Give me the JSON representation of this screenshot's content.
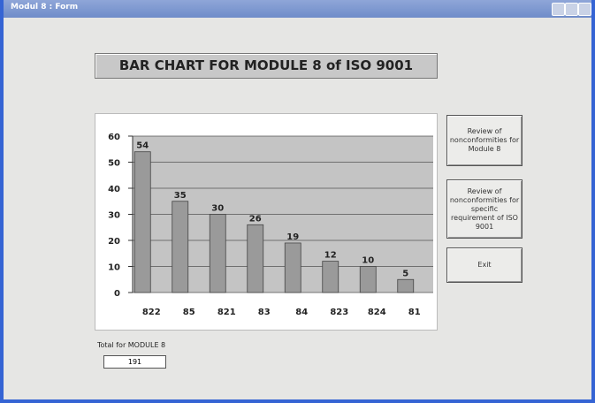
{
  "window": {
    "title": "Modul 8 : Form"
  },
  "heading": "BAR CHART FOR MODULE 8 of ISO 9001",
  "chart_data": {
    "type": "bar",
    "categories": [
      "822",
      "85",
      "821",
      "83",
      "84",
      "823",
      "824",
      "81"
    ],
    "values": [
      54,
      35,
      30,
      26,
      19,
      12,
      10,
      5
    ],
    "color": "#9a9a9a",
    "ylim": [
      0,
      60
    ],
    "yticks": [
      0,
      10,
      20,
      30,
      40,
      50,
      60
    ],
    "grid": true
  },
  "buttons": [
    "Review of nonconformities for Module 8",
    "Review of nonconformities for specific requirement of ISO 9001",
    "Exit"
  ],
  "total": {
    "label": "Total for MODULE 8",
    "value": 191
  }
}
